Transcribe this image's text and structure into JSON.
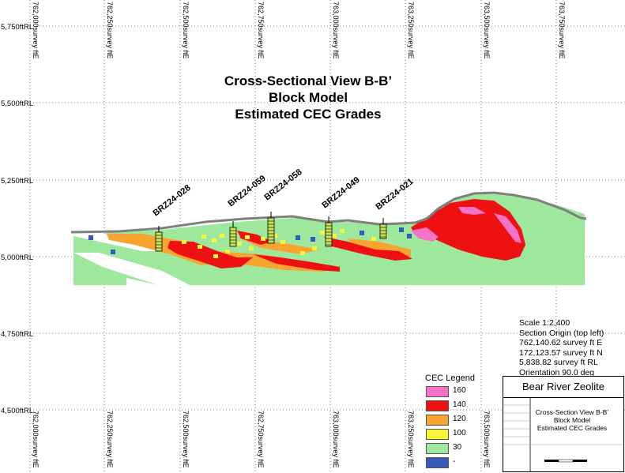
{
  "title": {
    "line1": "Cross-Sectional View B-B’",
    "line2": "Block Model",
    "line3": "Estimated CEC Grades"
  },
  "axes": {
    "easting_labels": [
      "762,000survey ftE",
      "762,250survey ftE",
      "762,500survey ftE",
      "762,750survey ftE",
      "763,000survey ftE",
      "763,250survey ftE",
      "763,500survey ftE",
      "763,750survey ftE"
    ],
    "elevation_labels": [
      "5,750ftRL",
      "5,500ftRL",
      "5,250ftRL",
      "5,000ftRL",
      "4,750ftRL",
      "4,500ftRL"
    ]
  },
  "drillholes": [
    {
      "name": "BRZ24-028"
    },
    {
      "name": "BRZ24-059"
    },
    {
      "name": "BRZ24-058"
    },
    {
      "name": "BRZ24-049"
    },
    {
      "name": "BRZ24-021"
    }
  ],
  "legend": {
    "title": "CEC Legend",
    "items": [
      {
        "label": "160",
        "color": "#f472c8"
      },
      {
        "label": "140",
        "color": "#ee1111"
      },
      {
        "label": "120",
        "color": "#f7a531"
      },
      {
        "label": "100",
        "color": "#f5f53a"
      },
      {
        "label": "30",
        "color": "#9de89c"
      },
      {
        "label": "-",
        "color": "#3a58b8"
      }
    ]
  },
  "scale_info": {
    "scale": "Scale 1:2,400",
    "origin_label": "Section Origin (top left)",
    "easting": "762,140.62 survey ft E",
    "northing": "172,123.57 survey ft N",
    "rl": "5,838.82 survey ft RL",
    "orientation": "Orientation 90.0 deg"
  },
  "title_block": {
    "company": "Bear River Zeolite",
    "line1": "Cross-Section View B-B’",
    "line2": "Block Model",
    "line3": "Estimated CEC Grades"
  },
  "colors": {
    "grid": "#555555",
    "topography": "#7f7f7f",
    "low_grade": "#9de89c"
  }
}
